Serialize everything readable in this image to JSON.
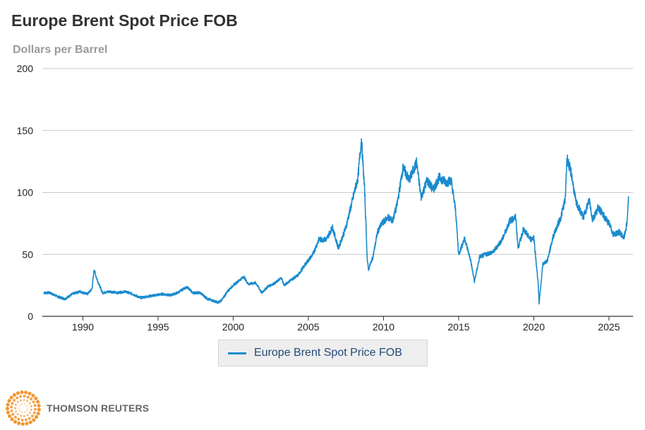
{
  "chart_data": {
    "type": "line",
    "title": "Europe Brent Spot Price FOB",
    "ylabel": "Dollars per Barrel",
    "xlabel": "",
    "xlim": [
      1987.3,
      2026.6
    ],
    "ylim": [
      0,
      200
    ],
    "yticks": [
      0,
      50,
      100,
      150,
      200
    ],
    "xticks": [
      1990,
      1995,
      2000,
      2005,
      2010,
      2015,
      2020,
      2025
    ],
    "grid": true,
    "legend_position": "bottom-center",
    "series": [
      {
        "name": "Europe Brent Spot Price FOB",
        "color": "#1a8bcd",
        "points": [
          [
            1987.4,
            19
          ],
          [
            1987.8,
            19
          ],
          [
            1988.3,
            16
          ],
          [
            1988.8,
            14
          ],
          [
            1989.3,
            18
          ],
          [
            1989.8,
            20
          ],
          [
            1990.3,
            18
          ],
          [
            1990.6,
            22
          ],
          [
            1990.75,
            38
          ],
          [
            1990.85,
            33
          ],
          [
            1991.0,
            28
          ],
          [
            1991.3,
            19
          ],
          [
            1991.8,
            20
          ],
          [
            1992.3,
            19
          ],
          [
            1992.8,
            20
          ],
          [
            1993.3,
            18
          ],
          [
            1993.8,
            15
          ],
          [
            1994.3,
            16
          ],
          [
            1994.8,
            17
          ],
          [
            1995.3,
            18
          ],
          [
            1995.8,
            17
          ],
          [
            1996.3,
            19
          ],
          [
            1996.8,
            23
          ],
          [
            1997.0,
            23
          ],
          [
            1997.3,
            19
          ],
          [
            1997.8,
            19
          ],
          [
            1998.3,
            14
          ],
          [
            1998.8,
            12
          ],
          [
            1999.0,
            11
          ],
          [
            1999.3,
            14
          ],
          [
            1999.6,
            20
          ],
          [
            2000.0,
            25
          ],
          [
            2000.7,
            32
          ],
          [
            2001.0,
            26
          ],
          [
            2001.5,
            27
          ],
          [
            2001.9,
            19
          ],
          [
            2002.3,
            24
          ],
          [
            2002.8,
            27
          ],
          [
            2003.2,
            31
          ],
          [
            2003.4,
            25
          ],
          [
            2003.8,
            29
          ],
          [
            2004.3,
            33
          ],
          [
            2004.8,
            42
          ],
          [
            2005.3,
            50
          ],
          [
            2005.7,
            62
          ],
          [
            2006.2,
            62
          ],
          [
            2006.6,
            72
          ],
          [
            2007.0,
            55
          ],
          [
            2007.5,
            72
          ],
          [
            2007.9,
            92
          ],
          [
            2008.3,
            112
          ],
          [
            2008.53,
            143
          ],
          [
            2008.75,
            100
          ],
          [
            2008.92,
            45
          ],
          [
            2009.0,
            38
          ],
          [
            2009.3,
            48
          ],
          [
            2009.6,
            68
          ],
          [
            2009.9,
            75
          ],
          [
            2010.3,
            80
          ],
          [
            2010.6,
            77
          ],
          [
            2010.9,
            90
          ],
          [
            2011.3,
            120
          ],
          [
            2011.7,
            110
          ],
          [
            2012.2,
            124
          ],
          [
            2012.5,
            96
          ],
          [
            2012.9,
            110
          ],
          [
            2013.3,
            102
          ],
          [
            2013.7,
            112
          ],
          [
            2014.2,
            108
          ],
          [
            2014.5,
            110
          ],
          [
            2014.8,
            85
          ],
          [
            2015.0,
            50
          ],
          [
            2015.4,
            63
          ],
          [
            2015.8,
            45
          ],
          [
            2016.05,
            28
          ],
          [
            2016.4,
            48
          ],
          [
            2016.8,
            50
          ],
          [
            2017.3,
            52
          ],
          [
            2017.9,
            62
          ],
          [
            2018.4,
            77
          ],
          [
            2018.8,
            80
          ],
          [
            2018.95,
            55
          ],
          [
            2019.3,
            70
          ],
          [
            2019.8,
            62
          ],
          [
            2020.0,
            64
          ],
          [
            2020.3,
            25
          ],
          [
            2020.35,
            10
          ],
          [
            2020.6,
            42
          ],
          [
            2020.9,
            45
          ],
          [
            2021.3,
            65
          ],
          [
            2021.8,
            80
          ],
          [
            2022.1,
            95
          ],
          [
            2022.2,
            128
          ],
          [
            2022.5,
            115
          ],
          [
            2022.8,
            92
          ],
          [
            2023.3,
            80
          ],
          [
            2023.7,
            94
          ],
          [
            2023.9,
            78
          ],
          [
            2024.3,
            88
          ],
          [
            2024.7,
            80
          ],
          [
            2025.0,
            75
          ],
          [
            2025.3,
            66
          ],
          [
            2025.7,
            68
          ],
          [
            2026.0,
            63
          ],
          [
            2026.2,
            75
          ],
          [
            2026.3,
            97
          ]
        ]
      }
    ]
  },
  "branding": {
    "name": "THOMSON REUTERS",
    "logo_color": "#f28a1a"
  }
}
